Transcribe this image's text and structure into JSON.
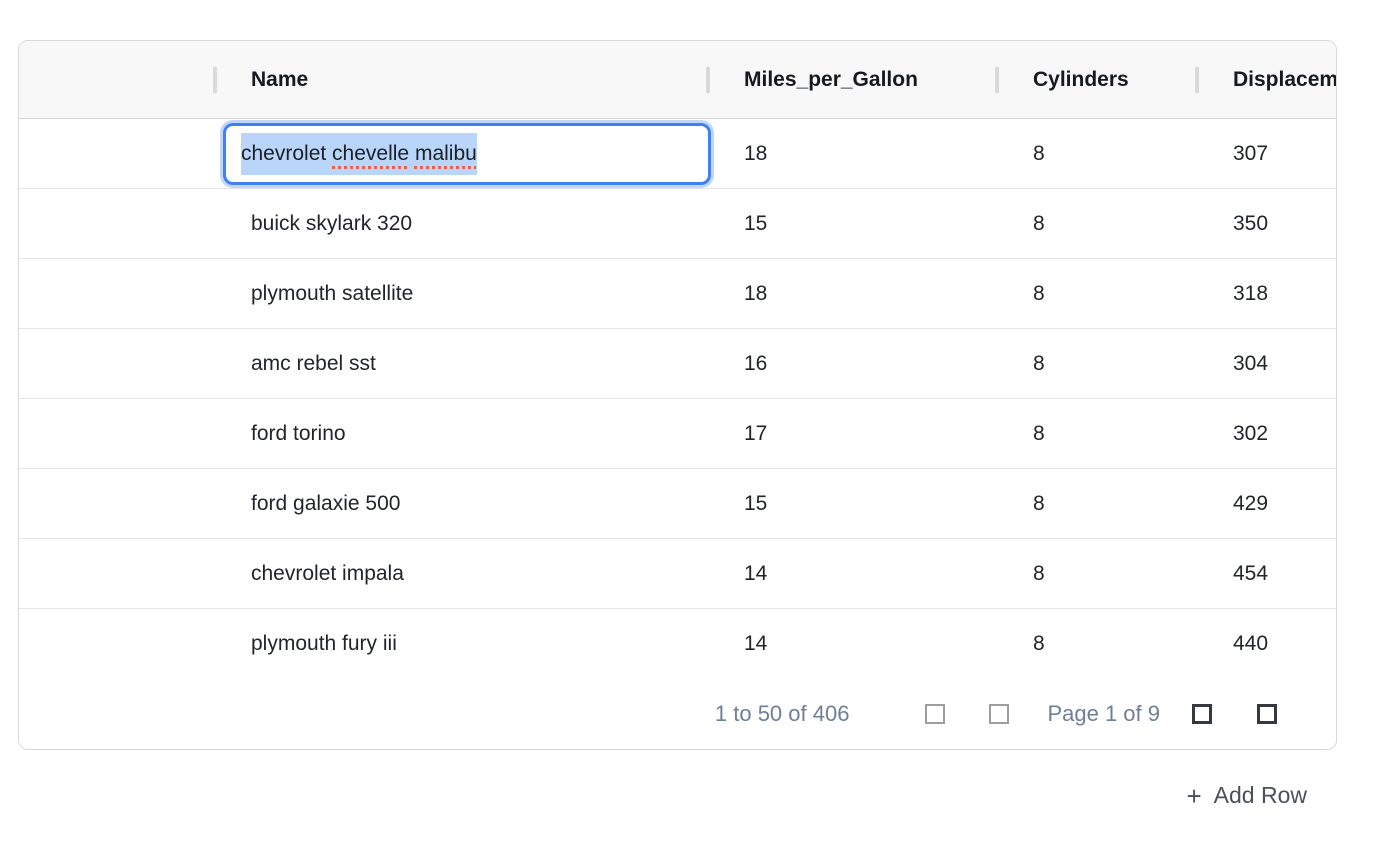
{
  "grid": {
    "columns": [
      {
        "label": ""
      },
      {
        "label": "Name"
      },
      {
        "label": "Miles_per_Gallon"
      },
      {
        "label": "Cylinders"
      },
      {
        "label": "Displacement"
      }
    ],
    "rows": [
      {
        "name": "chevrolet chevelle malibu",
        "mpg": "18",
        "cyl": "8",
        "disp": "307",
        "editing": true
      },
      {
        "name": "buick skylark 320",
        "mpg": "15",
        "cyl": "8",
        "disp": "350"
      },
      {
        "name": "plymouth satellite",
        "mpg": "18",
        "cyl": "8",
        "disp": "318"
      },
      {
        "name": "amc rebel sst",
        "mpg": "16",
        "cyl": "8",
        "disp": "304"
      },
      {
        "name": "ford torino",
        "mpg": "17",
        "cyl": "8",
        "disp": "302"
      },
      {
        "name": "ford galaxie 500",
        "mpg": "15",
        "cyl": "8",
        "disp": "429"
      },
      {
        "name": "chevrolet impala",
        "mpg": "14",
        "cyl": "8",
        "disp": "454"
      },
      {
        "name": "plymouth fury iii",
        "mpg": "14",
        "cyl": "8",
        "disp": "440"
      }
    ],
    "editor": {
      "value": "chevrolet chevelle malibu",
      "text_selected": true,
      "segments": [
        {
          "text": "chevrolet ",
          "misspelled": false
        },
        {
          "text": "chevelle",
          "misspelled": true
        },
        {
          "text": " ",
          "misspelled": false
        },
        {
          "text": "malibu",
          "misspelled": true
        }
      ],
      "selection_color": "#b9d5fa",
      "focus_border_color": "#4180f3",
      "misspell_color": "#e4604f"
    },
    "footer": {
      "range_summary": "1 to 50 of 406",
      "page_status": "Page 1 of 9",
      "nav_icons": [
        {
          "icon": "first-page-icon",
          "shape": "square-outline",
          "disabled": true
        },
        {
          "icon": "previous-page-icon",
          "shape": "square-outline",
          "disabled": true
        },
        {
          "icon": "next-page-icon",
          "shape": "square-outline",
          "disabled": false
        },
        {
          "icon": "last-page-icon",
          "shape": "square-outline",
          "disabled": false
        }
      ],
      "text_color": "#6f7e99"
    }
  },
  "actions": {
    "add_row_label": "Add Row",
    "add_row_icon": "+"
  }
}
